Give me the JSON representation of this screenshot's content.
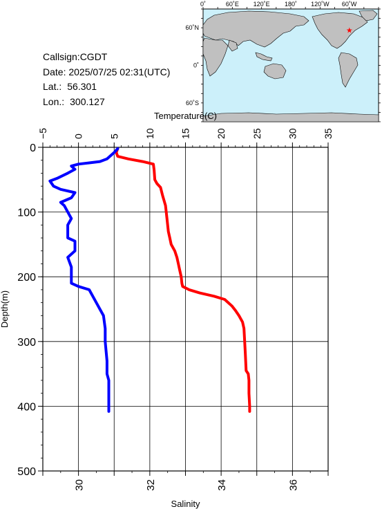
{
  "info": {
    "callsign": "Callsign:CGDT",
    "date": "Date:  2025/07/25 02:31(UTC)",
    "lat_label": "Lat.:",
    "lat_value": "56.301",
    "lon_label": "Lon.:",
    "lon_value": "300.127"
  },
  "map": {
    "lon_ticks": [
      "0˚",
      "60˚E",
      "120˚E",
      "180˚",
      "120˚W",
      "60˚W"
    ],
    "lat_ticks": [
      "60˚N",
      "0˚",
      "60˚S"
    ],
    "marker_lon": 300.127,
    "marker_lat": 56.301,
    "ocean_color": "#ccf0fa",
    "land_color": "#c0c0c0",
    "marker_color": "#ff0000"
  },
  "chart_data": {
    "type": "line",
    "ylabel": "Depth(m)",
    "ylim": [
      500,
      0
    ],
    "yticks": [
      "0",
      "100",
      "200",
      "300",
      "400",
      "500"
    ],
    "temperature_axis": {
      "label": "Temperature(C)",
      "lim": [
        -5,
        35
      ],
      "ticks": [
        "−5",
        "0",
        "5",
        "10",
        "15",
        "20",
        "25",
        "30",
        "35"
      ]
    },
    "salinity_axis": {
      "label": "Salinity",
      "lim": [
        29,
        37
      ],
      "ticks": [
        "30",
        "32",
        "34",
        "36"
      ]
    },
    "grid": true,
    "series": [
      {
        "color": "#ff0000",
        "axis": "temperature",
        "points": [
          [
            5.5,
            2
          ],
          [
            5.3,
            8
          ],
          [
            5.5,
            14
          ],
          [
            7,
            18
          ],
          [
            9,
            22
          ],
          [
            10.5,
            26
          ],
          [
            10.6,
            35
          ],
          [
            10.7,
            50
          ],
          [
            11,
            56
          ],
          [
            11.5,
            62
          ],
          [
            11.8,
            75
          ],
          [
            12.2,
            90
          ],
          [
            12.4,
            110
          ],
          [
            12.6,
            130
          ],
          [
            12.8,
            140
          ],
          [
            13,
            150
          ],
          [
            13.5,
            160
          ],
          [
            13.8,
            170
          ],
          [
            14,
            180
          ],
          [
            14.2,
            190
          ],
          [
            14.4,
            200
          ],
          [
            14.5,
            210
          ],
          [
            14.6,
            215
          ],
          [
            15.5,
            220
          ],
          [
            17,
            225
          ],
          [
            19,
            230
          ],
          [
            20.5,
            235
          ],
          [
            21,
            240
          ],
          [
            21.5,
            245
          ],
          [
            22,
            252
          ],
          [
            22.5,
            260
          ],
          [
            23,
            270
          ],
          [
            23.2,
            280
          ],
          [
            23.3,
            300
          ],
          [
            23.4,
            320
          ],
          [
            23.5,
            345
          ],
          [
            23.8,
            350
          ],
          [
            23.9,
            360
          ],
          [
            23.9,
            380
          ],
          [
            24,
            400
          ],
          [
            24,
            408
          ]
        ]
      },
      {
        "color": "#0000ff",
        "axis": "salinity",
        "points": [
          [
            31.1,
            2
          ],
          [
            31.0,
            8
          ],
          [
            30.8,
            18
          ],
          [
            30.6,
            22
          ],
          [
            30.3,
            24
          ],
          [
            30.0,
            26
          ],
          [
            29.8,
            29
          ],
          [
            29.9,
            34
          ],
          [
            29.7,
            40
          ],
          [
            29.4,
            48
          ],
          [
            29.2,
            52
          ],
          [
            29.3,
            60
          ],
          [
            29.5,
            65
          ],
          [
            29.9,
            70
          ],
          [
            29.8,
            78
          ],
          [
            29.5,
            85
          ],
          [
            29.6,
            90
          ],
          [
            29.7,
            100
          ],
          [
            29.8,
            110
          ],
          [
            29.7,
            120
          ],
          [
            29.7,
            140
          ],
          [
            29.9,
            145
          ],
          [
            29.9,
            160
          ],
          [
            29.7,
            170
          ],
          [
            29.8,
            185
          ],
          [
            29.8,
            195
          ],
          [
            29.8,
            210
          ],
          [
            30.0,
            215
          ],
          [
            30.3,
            220
          ],
          [
            30.4,
            230
          ],
          [
            30.5,
            240
          ],
          [
            30.6,
            250
          ],
          [
            30.7,
            260
          ],
          [
            30.75,
            280
          ],
          [
            30.75,
            300
          ],
          [
            30.8,
            330
          ],
          [
            30.8,
            350
          ],
          [
            30.85,
            360
          ],
          [
            30.85,
            408
          ]
        ]
      }
    ]
  }
}
